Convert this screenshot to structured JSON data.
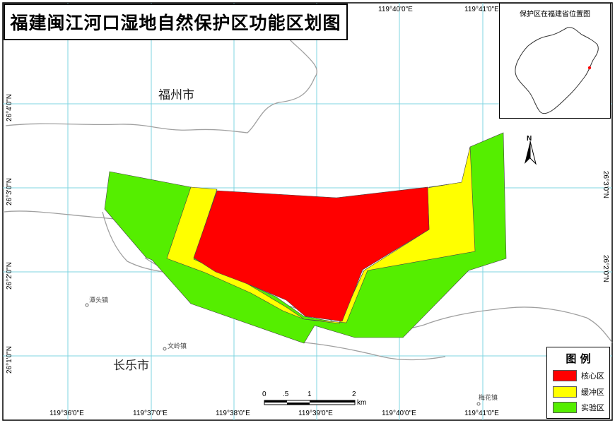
{
  "title": "福建闽江河口湿地自然保护区功能区划图",
  "grid": {
    "lon_labels_top": [
      "119°40'0\"E",
      "119°41'0\"E"
    ],
    "lon_labels_bottom": [
      "119°36'0\"E",
      "119°37'0\"E",
      "119°38'0\"E",
      "119°39'0\"E",
      "119°40'0\"E",
      "119°41'0\"E"
    ],
    "lat_labels_left": [
      "26°4'0\"N",
      "26°3'0\"N",
      "26°2'0\"N",
      "26°1'0\"N"
    ],
    "lat_labels_right": [
      "26°3'0\"N",
      "26°2'0\"N"
    ]
  },
  "places": {
    "fuzhou": "福州市",
    "changle": "长乐市",
    "tantou": "潭头镇",
    "wenling": "文岭镇",
    "meihua": "梅花镇"
  },
  "inset": {
    "title": "保护区在福建省位置图"
  },
  "legend": {
    "title": "图 例",
    "items": [
      {
        "label": "核心区",
        "color": "#ff0000"
      },
      {
        "label": "缓冲区",
        "color": "#ffff00"
      },
      {
        "label": "实验区",
        "color": "#55ee00"
      }
    ]
  },
  "scale_bar": {
    "labels": [
      "0",
      ".5",
      "1",
      "2"
    ],
    "unit": "km"
  },
  "north_arrow": {
    "label": "N"
  }
}
